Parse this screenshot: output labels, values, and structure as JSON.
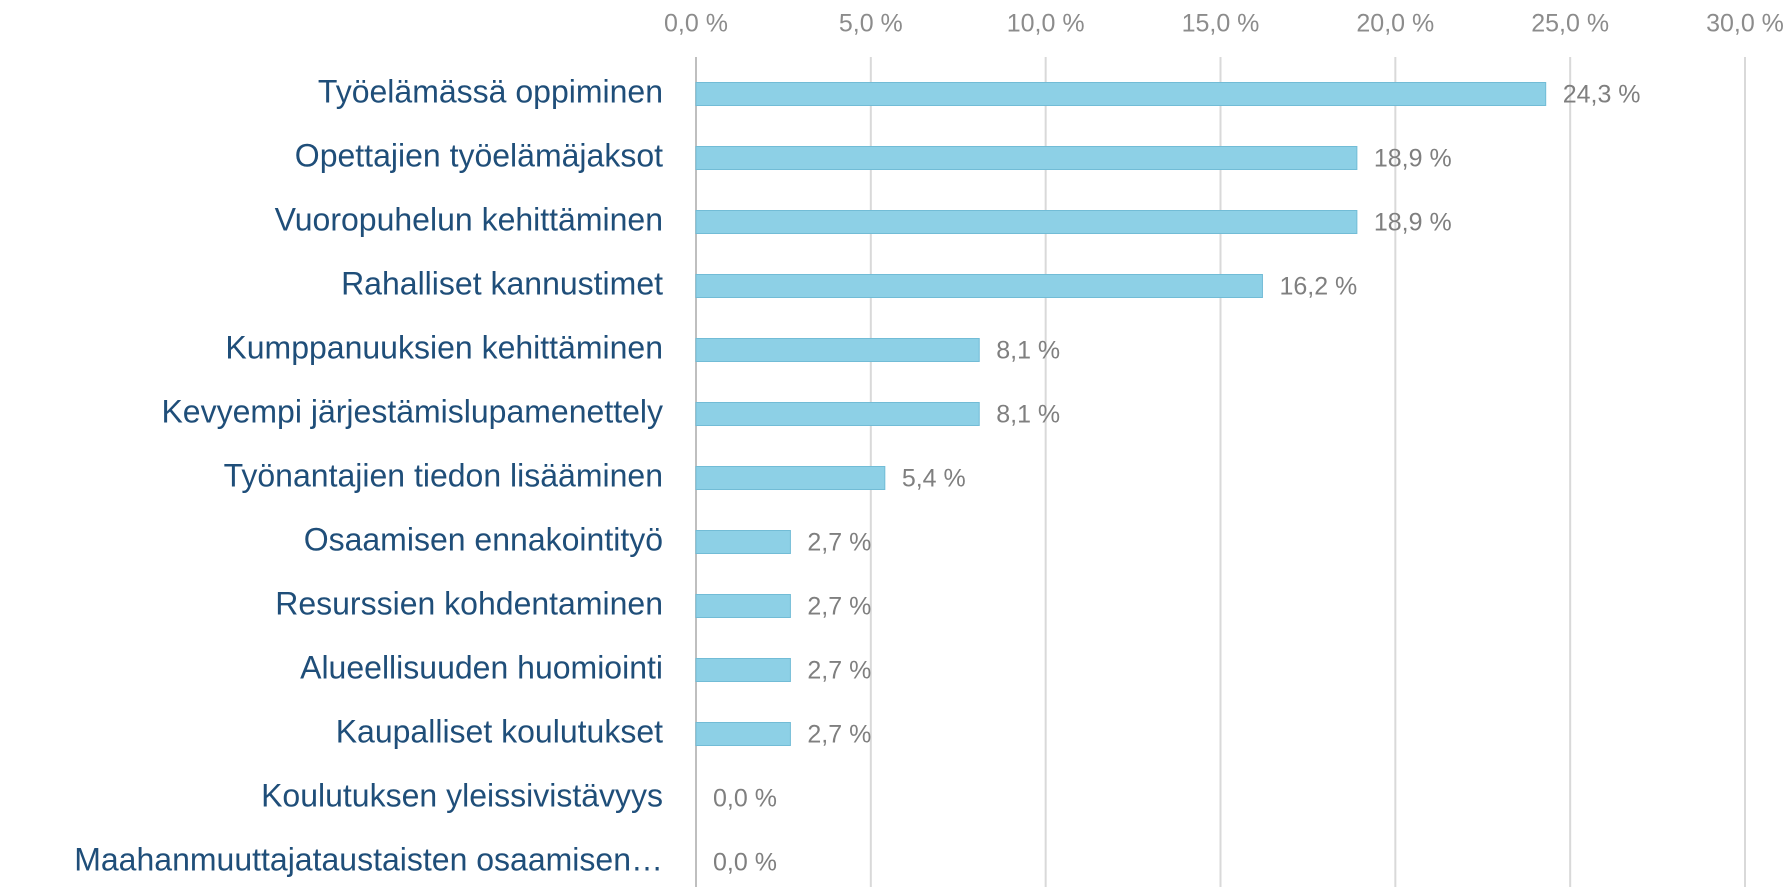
{
  "chart_data": {
    "type": "bar",
    "orientation": "horizontal",
    "categories": [
      "Työelämässä oppiminen",
      "Opettajien työelämäjaksot",
      "Vuoropuhelun kehittäminen",
      "Rahalliset kannustimet",
      "Kumppanuuksien kehittäminen",
      "Kevyempi järjestämislupamenettely",
      "Työnantajien tiedon lisääminen",
      "Osaamisen ennakointityö",
      "Resurssien kohdentaminen",
      "Alueellisuuden huomiointi",
      "Kaupalliset koulutukset",
      "Koulutuksen yleissivistävyys",
      "Maahanmuuttajataustaisten osaamisen…"
    ],
    "values": [
      24.3,
      18.9,
      18.9,
      16.2,
      8.1,
      8.1,
      5.4,
      2.7,
      2.7,
      2.7,
      2.7,
      0,
      0
    ],
    "value_labels": [
      "24,3 %",
      "18,9 %",
      "18,9 %",
      "16,2 %",
      "8,1 %",
      "8,1 %",
      "5,4 %",
      "2,7 %",
      "2,7 %",
      "2,7 %",
      "2,7 %",
      "0,0 %",
      "0,0 %"
    ],
    "color": "#8dd0e6",
    "xlim": [
      0,
      30
    ],
    "xticks": [
      {
        "value": 0,
        "label": "0,0 %"
      },
      {
        "value": 5,
        "label": "5,0 %"
      },
      {
        "value": 10,
        "label": "10,0 %"
      },
      {
        "value": 15,
        "label": "15,0 %"
      },
      {
        "value": 20,
        "label": "20,0 %"
      },
      {
        "value": 25,
        "label": "25,0 %"
      },
      {
        "value": 30,
        "label": "30,0 %"
      }
    ],
    "grid": true
  }
}
